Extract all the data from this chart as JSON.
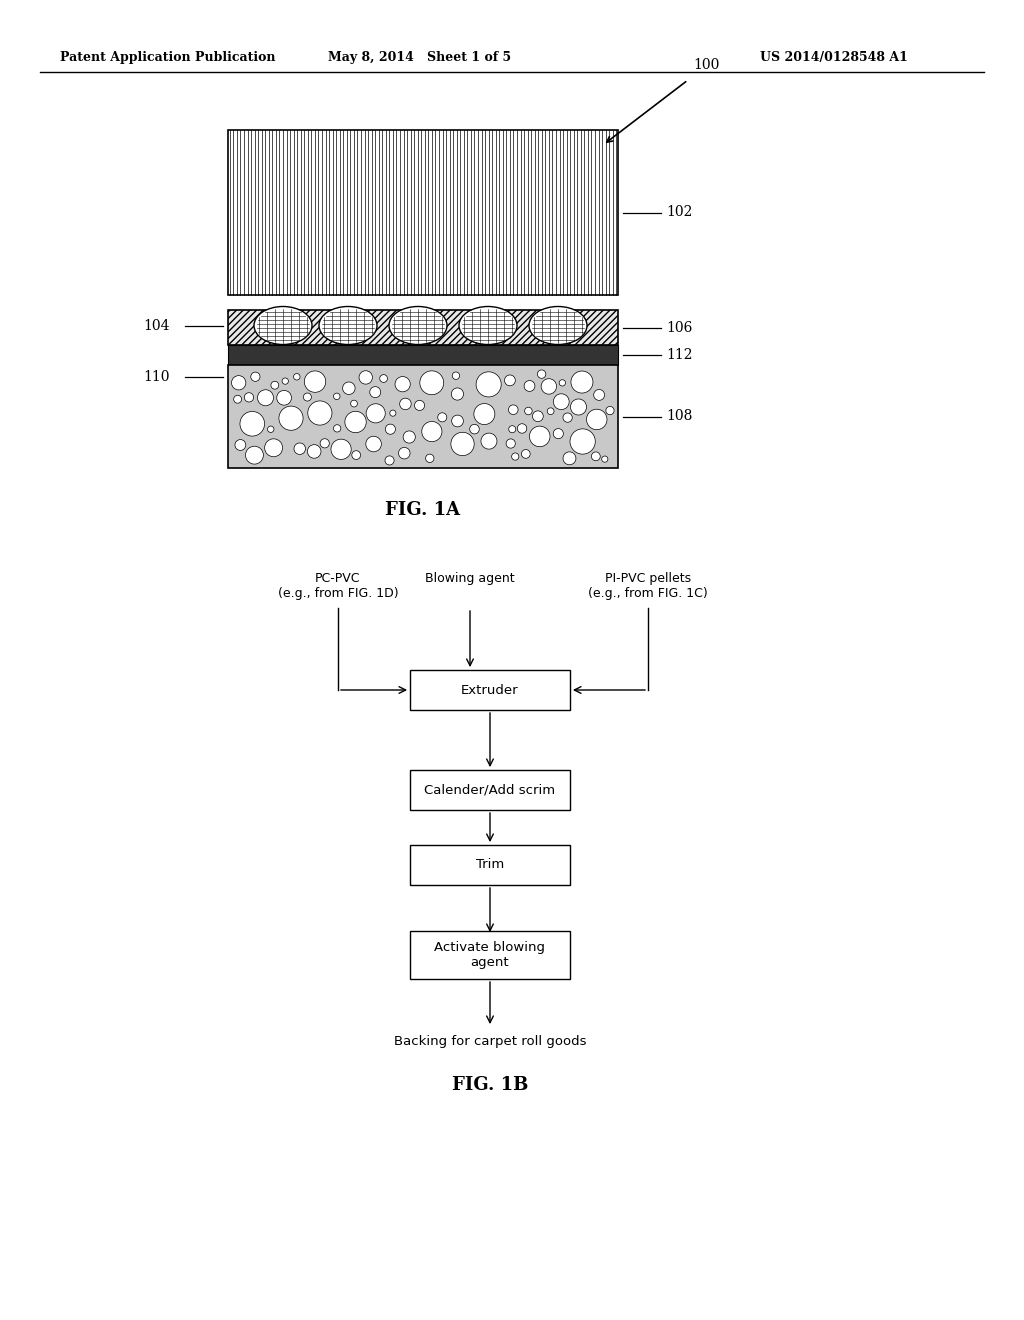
{
  "bg_color": "#ffffff",
  "header_left": "Patent Application Publication",
  "header_center": "May 8, 2014   Sheet 1 of 5",
  "header_right": "US 2014/0128548 A1",
  "fig1a_label": "FIG. 1A",
  "fig1b_label": "FIG. 1B",
  "label_100": "100",
  "label_102": "102",
  "label_104": "104",
  "label_106": "106",
  "label_108": "108",
  "label_110": "110",
  "label_112": "112",
  "flowchart": {
    "pc_pvc_label": "PC-PVC\n(e.g., from FIG. 1D)",
    "blowing_agent_label": "Blowing agent",
    "pi_pvc_label": "PI-PVC pellets\n(e.g., from FIG. 1C)",
    "extruder_label": "Extruder",
    "calender_label": "Calender/Add scrim",
    "trim_label": "Trim",
    "activate_label": "Activate blowing\nagent",
    "output_label": "Backing for carpet roll goods"
  }
}
